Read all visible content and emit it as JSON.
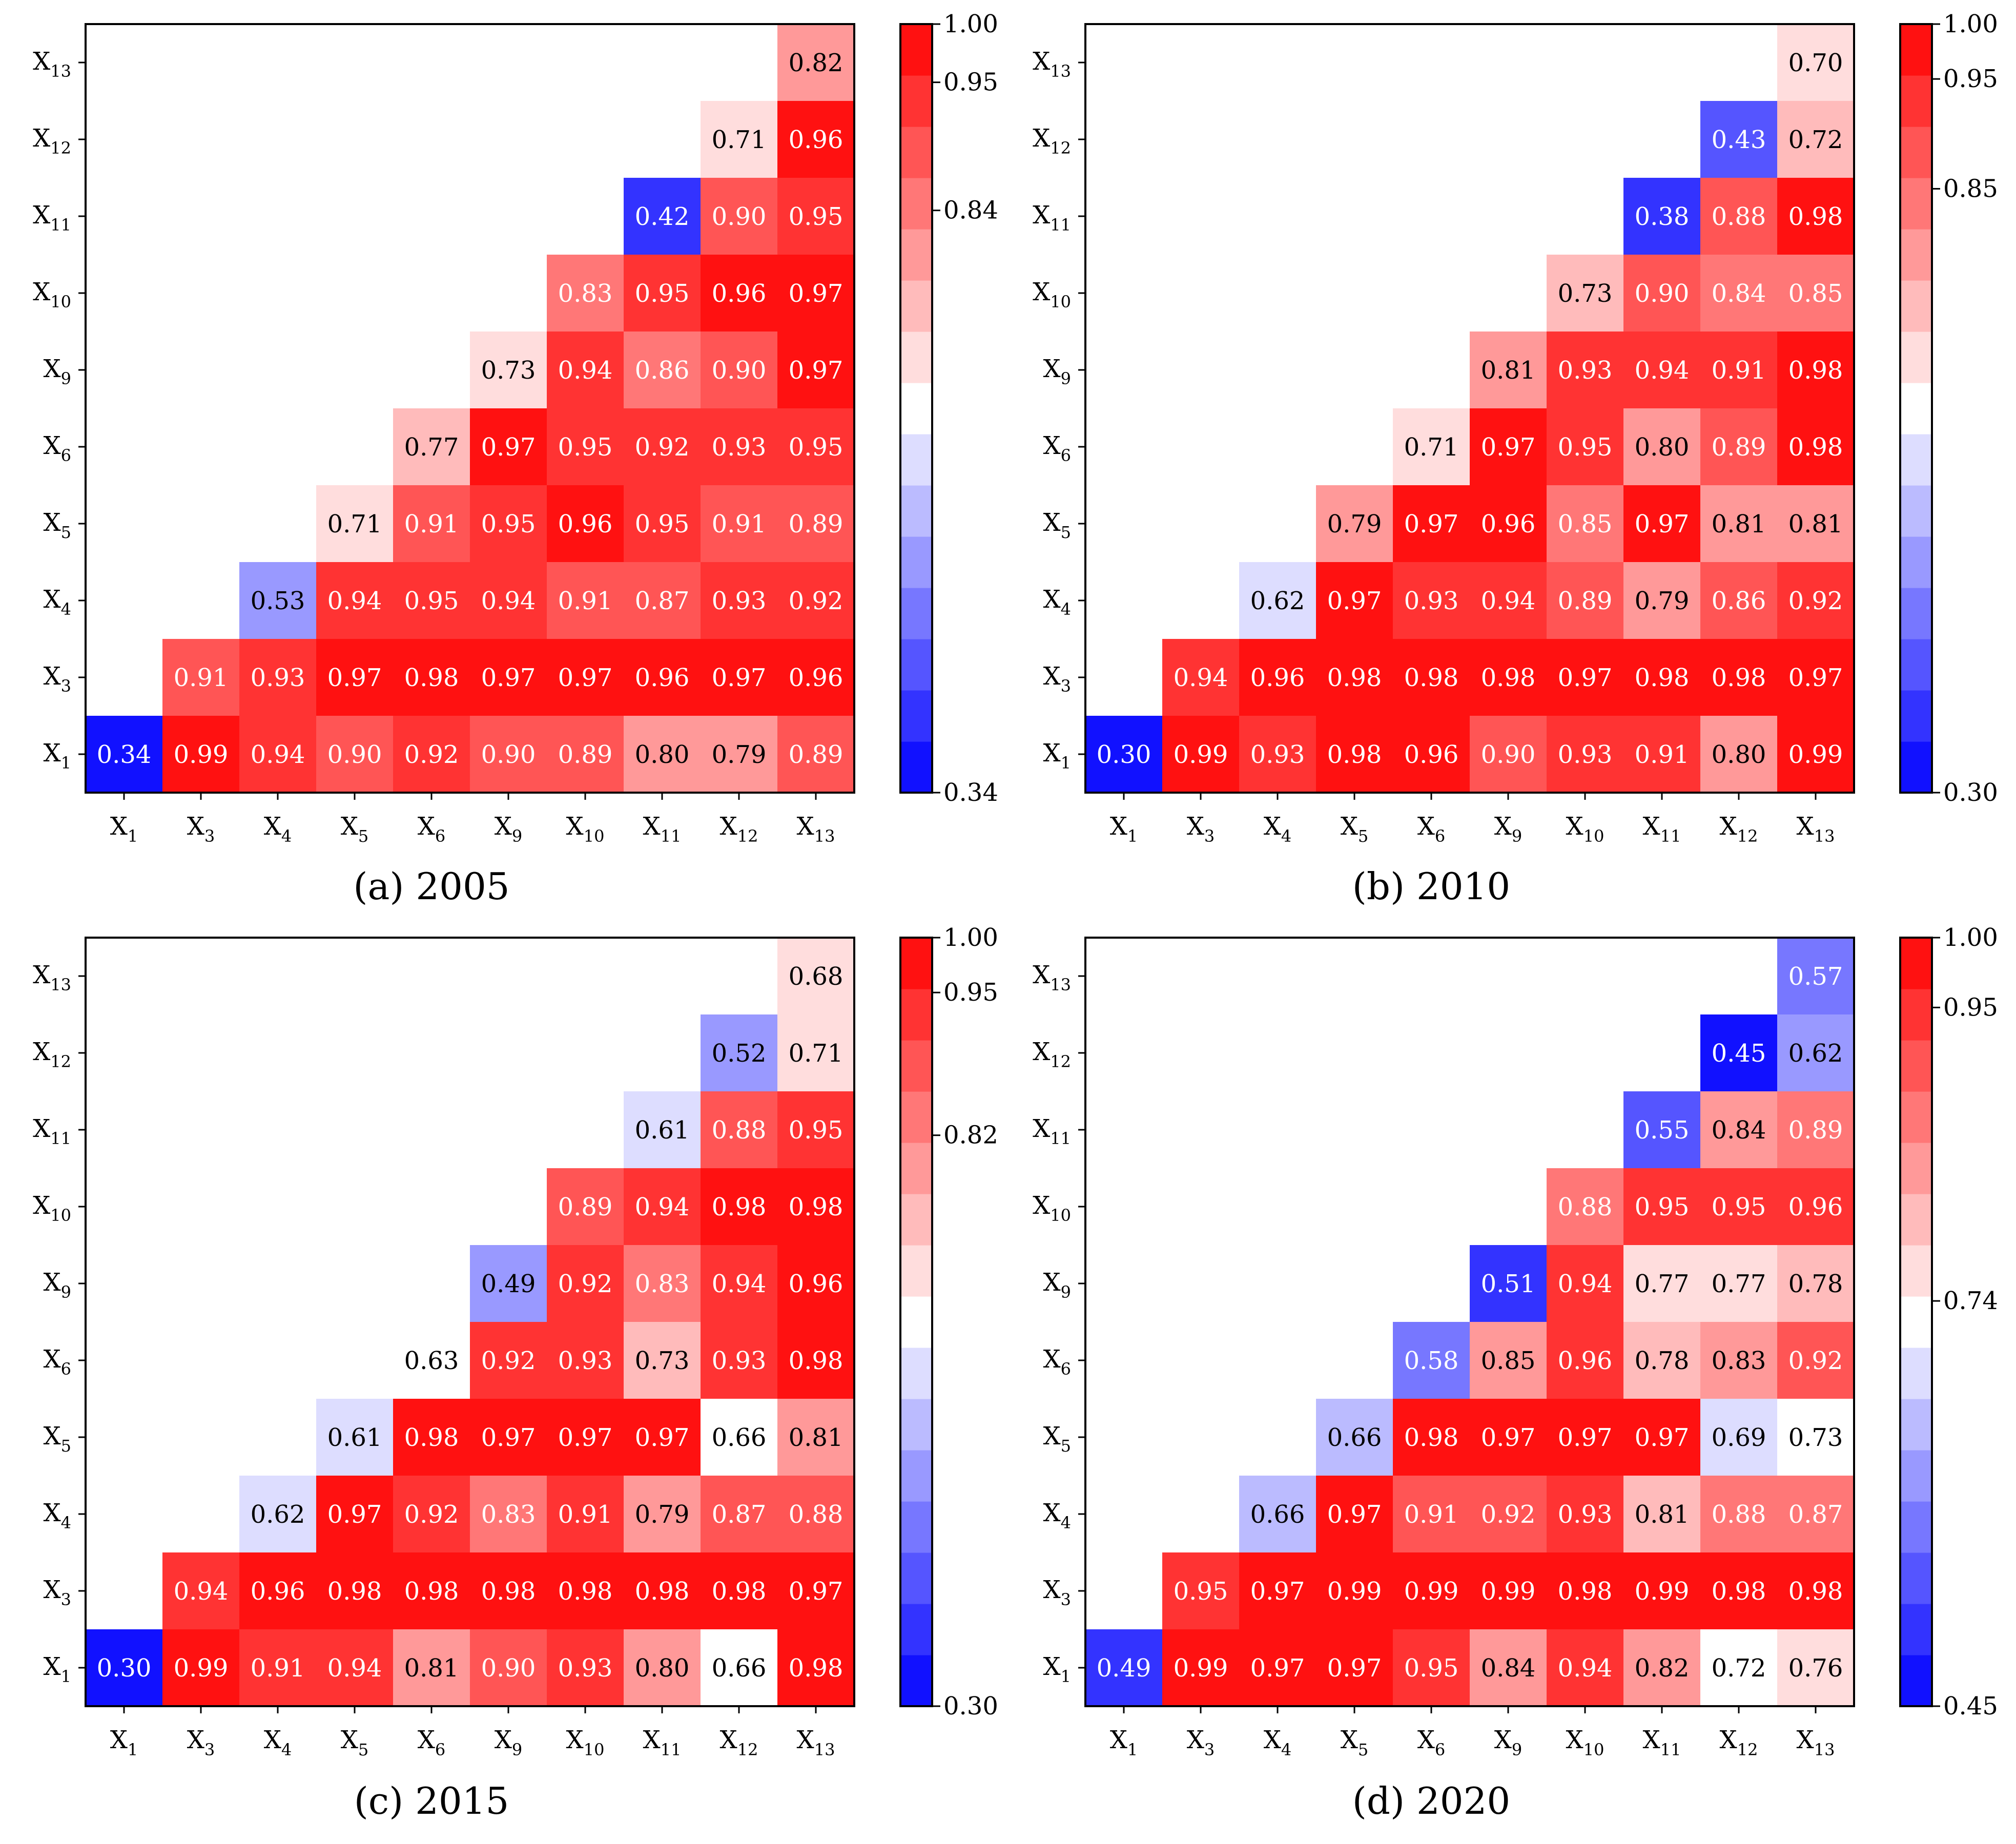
{
  "chart_data": [
    {
      "type": "heatmap",
      "caption": "(a) 2005",
      "variables": [
        "X1",
        "X3",
        "X4",
        "X5",
        "X6",
        "X9",
        "X10",
        "X11",
        "X12",
        "X13"
      ],
      "x_labels": [
        [
          "X",
          "1"
        ],
        [
          "X",
          "3"
        ],
        [
          "X",
          "4"
        ],
        [
          "X",
          "5"
        ],
        [
          "X",
          "6"
        ],
        [
          "X",
          "9"
        ],
        [
          "X",
          "10"
        ],
        [
          "X",
          "11"
        ],
        [
          "X",
          "12"
        ],
        [
          "X",
          "13"
        ]
      ],
      "y_labels": [
        [
          "X",
          "1"
        ],
        [
          "X",
          "3"
        ],
        [
          "X",
          "4"
        ],
        [
          "X",
          "5"
        ],
        [
          "X",
          "6"
        ],
        [
          "X",
          "9"
        ],
        [
          "X",
          "10"
        ],
        [
          "X",
          "11"
        ],
        [
          "X",
          "12"
        ],
        [
          "X",
          "13"
        ]
      ],
      "matrix": [
        [
          0.34,
          0.99,
          0.94,
          0.9,
          0.92,
          0.9,
          0.89,
          0.8,
          0.79,
          0.89
        ],
        [
          null,
          0.91,
          0.93,
          0.97,
          0.98,
          0.97,
          0.97,
          0.96,
          0.97,
          0.96
        ],
        [
          null,
          null,
          0.53,
          0.94,
          0.95,
          0.94,
          0.91,
          0.87,
          0.93,
          0.92
        ],
        [
          null,
          null,
          null,
          0.71,
          0.91,
          0.95,
          0.96,
          0.95,
          0.91,
          0.89
        ],
        [
          null,
          null,
          null,
          null,
          0.77,
          0.97,
          0.95,
          0.92,
          0.93,
          0.95
        ],
        [
          null,
          null,
          null,
          null,
          null,
          0.73,
          0.94,
          0.86,
          0.9,
          0.97
        ],
        [
          null,
          null,
          null,
          null,
          null,
          null,
          0.83,
          0.95,
          0.96,
          0.97
        ],
        [
          null,
          null,
          null,
          null,
          null,
          null,
          null,
          0.42,
          0.9,
          0.95
        ],
        [
          null,
          null,
          null,
          null,
          null,
          null,
          null,
          null,
          0.71,
          0.96
        ],
        [
          null,
          null,
          null,
          null,
          null,
          null,
          null,
          null,
          null,
          0.82
        ]
      ],
      "colorbar": {
        "min": 0.34,
        "max": 1.0,
        "ticks": [
          "1.00",
          "0.95",
          "0.84",
          "0.34"
        ],
        "levels": 15,
        "low_color": "#0000ff",
        "mid_color": "#ffffff",
        "high_color": "#ff0000"
      }
    },
    {
      "type": "heatmap",
      "caption": "(b) 2010",
      "variables": [
        "X1",
        "X3",
        "X4",
        "X5",
        "X6",
        "X9",
        "X10",
        "X11",
        "X12",
        "X13"
      ],
      "x_labels": [
        [
          "X",
          "1"
        ],
        [
          "X",
          "3"
        ],
        [
          "X",
          "4"
        ],
        [
          "X",
          "5"
        ],
        [
          "X",
          "6"
        ],
        [
          "X",
          "9"
        ],
        [
          "X",
          "10"
        ],
        [
          "X",
          "11"
        ],
        [
          "X",
          "12"
        ],
        [
          "X",
          "13"
        ]
      ],
      "y_labels": [
        [
          "X",
          "1"
        ],
        [
          "X",
          "3"
        ],
        [
          "X",
          "4"
        ],
        [
          "X",
          "5"
        ],
        [
          "X",
          "6"
        ],
        [
          "X",
          "9"
        ],
        [
          "X",
          "10"
        ],
        [
          "X",
          "11"
        ],
        [
          "X",
          "12"
        ],
        [
          "X",
          "13"
        ]
      ],
      "matrix": [
        [
          0.3,
          0.99,
          0.93,
          0.98,
          0.96,
          0.9,
          0.93,
          0.91,
          0.8,
          0.99
        ],
        [
          null,
          0.94,
          0.96,
          0.98,
          0.98,
          0.98,
          0.97,
          0.98,
          0.98,
          0.97
        ],
        [
          null,
          null,
          0.62,
          0.97,
          0.93,
          0.94,
          0.89,
          0.79,
          0.86,
          0.92
        ],
        [
          null,
          null,
          null,
          0.79,
          0.97,
          0.96,
          0.85,
          0.97,
          0.81,
          0.81
        ],
        [
          null,
          null,
          null,
          null,
          0.71,
          0.97,
          0.95,
          0.8,
          0.89,
          0.98
        ],
        [
          null,
          null,
          null,
          null,
          null,
          0.81,
          0.93,
          0.94,
          0.91,
          0.98
        ],
        [
          null,
          null,
          null,
          null,
          null,
          null,
          0.73,
          0.9,
          0.84,
          0.85
        ],
        [
          null,
          null,
          null,
          null,
          null,
          null,
          null,
          0.38,
          0.88,
          0.98
        ],
        [
          null,
          null,
          null,
          null,
          null,
          null,
          null,
          null,
          0.43,
          0.72
        ],
        [
          null,
          null,
          null,
          null,
          null,
          null,
          null,
          null,
          null,
          0.7
        ]
      ],
      "colorbar": {
        "min": 0.3,
        "max": 1.0,
        "ticks": [
          "1.00",
          "0.95",
          "0.85",
          "0.30"
        ],
        "levels": 15,
        "low_color": "#0000ff",
        "mid_color": "#ffffff",
        "high_color": "#ff0000"
      }
    },
    {
      "type": "heatmap",
      "caption": "(c) 2015",
      "variables": [
        "X1",
        "X3",
        "X4",
        "X5",
        "X6",
        "X9",
        "X10",
        "X11",
        "X12",
        "X13"
      ],
      "x_labels": [
        [
          "X",
          "1"
        ],
        [
          "X",
          "3"
        ],
        [
          "X",
          "4"
        ],
        [
          "X",
          "5"
        ],
        [
          "X",
          "6"
        ],
        [
          "X",
          "9"
        ],
        [
          "X",
          "10"
        ],
        [
          "X",
          "11"
        ],
        [
          "X",
          "12"
        ],
        [
          "X",
          "13"
        ]
      ],
      "y_labels": [
        [
          "X",
          "1"
        ],
        [
          "X",
          "3"
        ],
        [
          "X",
          "4"
        ],
        [
          "X",
          "5"
        ],
        [
          "X",
          "6"
        ],
        [
          "X",
          "9"
        ],
        [
          "X",
          "10"
        ],
        [
          "X",
          "11"
        ],
        [
          "X",
          "12"
        ],
        [
          "X",
          "13"
        ]
      ],
      "matrix": [
        [
          0.3,
          0.99,
          0.91,
          0.94,
          0.81,
          0.9,
          0.93,
          0.8,
          0.66,
          0.98
        ],
        [
          null,
          0.94,
          0.96,
          0.98,
          0.98,
          0.98,
          0.98,
          0.98,
          0.98,
          0.97
        ],
        [
          null,
          null,
          0.62,
          0.97,
          0.92,
          0.83,
          0.91,
          0.79,
          0.87,
          0.88
        ],
        [
          null,
          null,
          null,
          0.61,
          0.98,
          0.97,
          0.97,
          0.97,
          0.66,
          0.81
        ],
        [
          null,
          null,
          null,
          null,
          0.63,
          0.92,
          0.93,
          0.73,
          0.93,
          0.98
        ],
        [
          null,
          null,
          null,
          null,
          null,
          0.49,
          0.92,
          0.83,
          0.94,
          0.96
        ],
        [
          null,
          null,
          null,
          null,
          null,
          null,
          0.89,
          0.94,
          0.98,
          0.98
        ],
        [
          null,
          null,
          null,
          null,
          null,
          null,
          null,
          0.61,
          0.88,
          0.95
        ],
        [
          null,
          null,
          null,
          null,
          null,
          null,
          null,
          null,
          0.52,
          0.71
        ],
        [
          null,
          null,
          null,
          null,
          null,
          null,
          null,
          null,
          null,
          0.68
        ]
      ],
      "colorbar": {
        "min": 0.3,
        "max": 1.0,
        "ticks": [
          "1.00",
          "0.95",
          "0.82",
          "0.30"
        ],
        "levels": 15,
        "low_color": "#0000ff",
        "mid_color": "#ffffff",
        "high_color": "#ff0000"
      }
    },
    {
      "type": "heatmap",
      "caption": "(d) 2020",
      "variables": [
        "X1",
        "X3",
        "X4",
        "X5",
        "X6",
        "X9",
        "X10",
        "X11",
        "X12",
        "X13"
      ],
      "x_labels": [
        [
          "X",
          "1"
        ],
        [
          "X",
          "3"
        ],
        [
          "X",
          "4"
        ],
        [
          "X",
          "5"
        ],
        [
          "X",
          "6"
        ],
        [
          "X",
          "9"
        ],
        [
          "X",
          "10"
        ],
        [
          "X",
          "11"
        ],
        [
          "X",
          "12"
        ],
        [
          "X",
          "13"
        ]
      ],
      "y_labels": [
        [
          "X",
          "1"
        ],
        [
          "X",
          "3"
        ],
        [
          "X",
          "4"
        ],
        [
          "X",
          "5"
        ],
        [
          "X",
          "6"
        ],
        [
          "X",
          "9"
        ],
        [
          "X",
          "10"
        ],
        [
          "X",
          "11"
        ],
        [
          "X",
          "12"
        ],
        [
          "X",
          "13"
        ]
      ],
      "matrix": [
        [
          0.49,
          0.99,
          0.97,
          0.97,
          0.95,
          0.84,
          0.94,
          0.82,
          0.72,
          0.76
        ],
        [
          null,
          0.95,
          0.97,
          0.99,
          0.99,
          0.99,
          0.98,
          0.99,
          0.98,
          0.98
        ],
        [
          null,
          null,
          0.66,
          0.97,
          0.91,
          0.92,
          0.93,
          0.81,
          0.88,
          0.87
        ],
        [
          null,
          null,
          null,
          0.66,
          0.98,
          0.97,
          0.97,
          0.97,
          0.69,
          0.73
        ],
        [
          null,
          null,
          null,
          null,
          0.58,
          0.85,
          0.96,
          0.78,
          0.83,
          0.92
        ],
        [
          null,
          null,
          null,
          null,
          null,
          0.51,
          0.94,
          0.77,
          0.77,
          0.78
        ],
        [
          null,
          null,
          null,
          null,
          null,
          null,
          0.88,
          0.95,
          0.95,
          0.96
        ],
        [
          null,
          null,
          null,
          null,
          null,
          null,
          null,
          0.55,
          0.84,
          0.89
        ],
        [
          null,
          null,
          null,
          null,
          null,
          null,
          null,
          null,
          0.45,
          0.62
        ],
        [
          null,
          null,
          null,
          null,
          null,
          null,
          null,
          null,
          null,
          0.57
        ]
      ],
      "colorbar": {
        "min": 0.45,
        "max": 1.0,
        "ticks": [
          "1.00",
          "0.95",
          "0.74",
          "0.45"
        ],
        "levels": 15,
        "low_color": "#0000ff",
        "mid_color": "#ffffff",
        "high_color": "#ff0000"
      }
    }
  ]
}
